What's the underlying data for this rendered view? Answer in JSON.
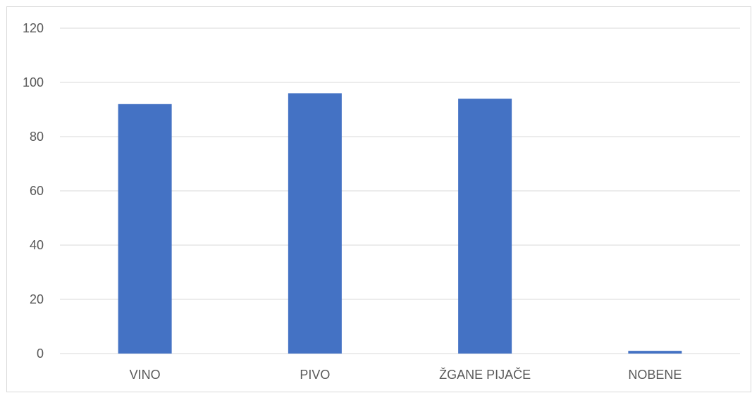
{
  "chart_data": {
    "type": "bar",
    "categories": [
      "VINO",
      "PIVO",
      "ŽGANE PIJAČE",
      "NOBENE"
    ],
    "values": [
      92,
      96,
      94,
      1
    ],
    "ylim": [
      0,
      120
    ],
    "yticks": [
      "0",
      "20",
      "40",
      "60",
      "80",
      "100",
      "120"
    ],
    "grid": true,
    "legend": "none",
    "colors": {
      "bar": "#4472C4",
      "grid": "#D9D9D9",
      "text": "#595959",
      "border": "#D9D9D9"
    }
  }
}
